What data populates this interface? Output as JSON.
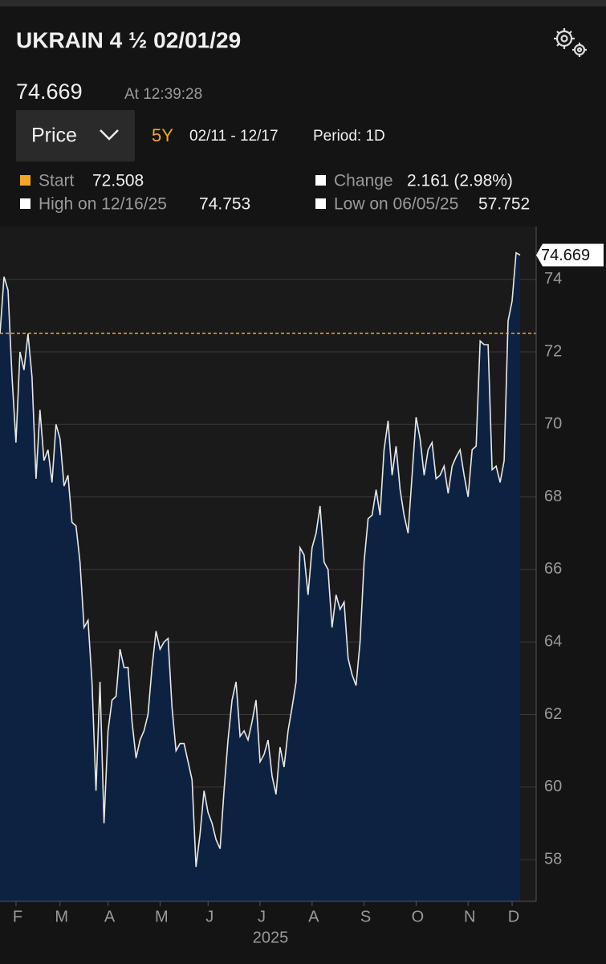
{
  "header": {
    "title": "UKRAIN 4 ½  02/01/29",
    "price": "74.669",
    "time": "At 12:39:28",
    "dropdown": "Price",
    "range": "5Y",
    "dates": "02/11 - 12/17",
    "period": "Period: 1D"
  },
  "stats": {
    "start": {
      "label": "Start",
      "value": 72.508
    },
    "change": {
      "label": "Change",
      "value": "2.161 (2.98%)"
    },
    "high": {
      "label": "High on 12/16/25",
      "value": 74.753
    },
    "low": {
      "label": "Low on 06/05/25",
      "value": 57.752
    }
  },
  "chart_data": {
    "type": "area",
    "x_label": "2025",
    "categories": [
      null,
      null,
      null,
      null,
      "F",
      null,
      null,
      null,
      null,
      null,
      null,
      null,
      null,
      null,
      null,
      "M",
      null,
      null,
      null,
      null,
      null,
      null,
      null,
      null,
      null,
      null,
      null,
      "A",
      null,
      null,
      null,
      null,
      null,
      null,
      null,
      null,
      null,
      null,
      null,
      null,
      "M",
      null,
      null,
      null,
      null,
      null,
      null,
      null,
      null,
      null,
      null,
      null,
      "J",
      null,
      null,
      null,
      null,
      null,
      null,
      null,
      null,
      null,
      null,
      null,
      null,
      "J",
      null,
      null,
      null,
      null,
      null,
      null,
      null,
      null,
      null,
      null,
      null,
      null,
      "A",
      null,
      null,
      null,
      null,
      null,
      null,
      null,
      null,
      null,
      null,
      null,
      null,
      "S",
      null,
      null,
      null,
      null,
      null,
      null,
      null,
      null,
      null,
      null,
      null,
      null,
      "O",
      null,
      null,
      null,
      null,
      null,
      null,
      null,
      null,
      null,
      null,
      null,
      null,
      "N",
      null,
      null,
      null,
      null,
      null,
      null,
      null,
      null,
      null,
      null,
      "D",
      null,
      null
    ],
    "series": [
      {
        "name": "Price",
        "color": "#e8e8e8",
        "fill": "#0d2240",
        "values": [
          72.5,
          74.07,
          73.7,
          71.3,
          69.5,
          72.0,
          71.5,
          72.5,
          71.3,
          68.5,
          70.4,
          69.0,
          69.3,
          68.4,
          70.0,
          69.6,
          68.3,
          68.6,
          67.3,
          67.2,
          66.2,
          64.4,
          64.6,
          62.9,
          59.9,
          62.9,
          59.0,
          61.55,
          62.4,
          62.5,
          63.8,
          63.3,
          63.3,
          61.8,
          60.8,
          61.3,
          61.55,
          62.0,
          63.3,
          64.3,
          63.8,
          64.0,
          64.1,
          62.2,
          61.0,
          61.2,
          61.2,
          60.7,
          60.2,
          57.8,
          58.7,
          59.9,
          59.3,
          59.0,
          58.55,
          58.3,
          59.9,
          61.3,
          62.4,
          62.9,
          61.4,
          61.55,
          61.3,
          61.8,
          62.4,
          60.7,
          60.9,
          61.3,
          60.3,
          59.8,
          61.1,
          60.55,
          61.55,
          62.2,
          62.9,
          66.6,
          66.4,
          65.3,
          66.6,
          67.0,
          67.75,
          66.2,
          66.0,
          64.4,
          65.3,
          64.9,
          65.1,
          63.55,
          63.1,
          62.8,
          64.0,
          66.2,
          67.4,
          67.5,
          68.2,
          67.5,
          69.3,
          70.1,
          68.6,
          69.4,
          68.2,
          67.5,
          67.0,
          68.6,
          70.2,
          69.6,
          68.6,
          69.3,
          69.5,
          68.5,
          68.6,
          68.85,
          68.1,
          68.85,
          69.1,
          69.3,
          68.6,
          68.0,
          69.3,
          69.4,
          72.3,
          72.2,
          72.2,
          68.75,
          68.85,
          68.4,
          69.0,
          72.85,
          73.4,
          74.73,
          74.669
        ]
      }
    ],
    "ylim": [
      56.85,
      75.3
    ],
    "yticks": [
      58,
      60,
      62,
      64,
      66,
      68,
      70,
      72,
      74
    ],
    "grid": true
  }
}
